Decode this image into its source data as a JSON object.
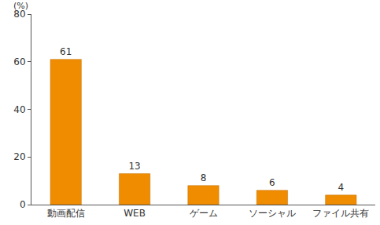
{
  "chart_data": {
    "type": "bar",
    "y_label": "(%)",
    "categories": [
      "動画配信",
      "WEB",
      "ゲーム",
      "ソーシャル",
      "ファイル共有"
    ],
    "values": [
      61,
      13,
      8,
      6,
      4
    ],
    "color": "#f08c00",
    "ylim": [
      0,
      80
    ],
    "yticks": [
      0,
      20,
      40,
      60,
      80
    ],
    "grid": false,
    "data_labels": true
  }
}
